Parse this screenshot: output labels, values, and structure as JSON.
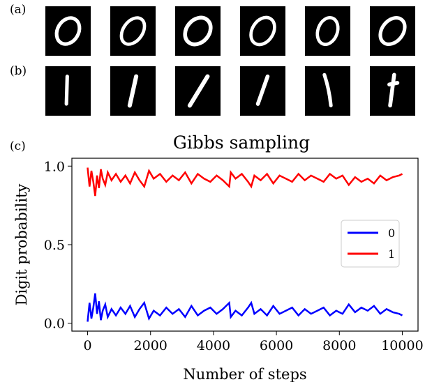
{
  "panel_labels": {
    "a": "(a)",
    "b": "(b)",
    "c": "(c)"
  },
  "digit_images": {
    "row_a_digit": "0",
    "row_b_digit": "1",
    "count_per_row": 6
  },
  "chart_data": {
    "type": "line",
    "title": "Gibbs sampling",
    "xlabel": "Number of steps",
    "ylabel": "Digit probability",
    "xlim": [
      -500,
      10500
    ],
    "ylim": [
      -0.05,
      1.05
    ],
    "xticks": [
      0,
      2000,
      4000,
      6000,
      8000,
      10000
    ],
    "xtick_labels": [
      "0",
      "2000",
      "4000",
      "6000",
      "8000",
      "10000"
    ],
    "yticks": [
      0.0,
      0.5,
      1.0
    ],
    "ytick_labels": [
      "0.0",
      "0.5",
      "1.0"
    ],
    "grid": false,
    "legend_position": "right",
    "series": [
      {
        "name": "0",
        "color": "#0000ff",
        "x": [
          0,
          60,
          120,
          180,
          240,
          300,
          360,
          420,
          480,
          560,
          640,
          760,
          900,
          1050,
          1200,
          1350,
          1500,
          1650,
          1800,
          1950,
          2100,
          2300,
          2500,
          2700,
          2900,
          3100,
          3300,
          3500,
          3700,
          3900,
          4100,
          4300,
          4500,
          4550,
          4700,
          4900,
          5100,
          5200,
          5300,
          5500,
          5700,
          5900,
          6100,
          6300,
          6500,
          6700,
          6900,
          7100,
          7300,
          7500,
          7700,
          7900,
          8100,
          8300,
          8500,
          8700,
          8900,
          9100,
          9300,
          9500,
          9700,
          9900,
          10000
        ],
        "values": [
          0.01,
          0.13,
          0.03,
          0.1,
          0.19,
          0.06,
          0.14,
          0.02,
          0.08,
          0.12,
          0.04,
          0.09,
          0.05,
          0.1,
          0.06,
          0.11,
          0.04,
          0.09,
          0.13,
          0.03,
          0.08,
          0.05,
          0.1,
          0.06,
          0.09,
          0.04,
          0.11,
          0.05,
          0.08,
          0.1,
          0.06,
          0.09,
          0.13,
          0.04,
          0.08,
          0.05,
          0.1,
          0.13,
          0.06,
          0.09,
          0.05,
          0.11,
          0.06,
          0.08,
          0.1,
          0.05,
          0.09,
          0.06,
          0.08,
          0.1,
          0.05,
          0.08,
          0.06,
          0.12,
          0.07,
          0.1,
          0.08,
          0.11,
          0.06,
          0.09,
          0.07,
          0.06,
          0.05
        ]
      },
      {
        "name": "1",
        "color": "#ff0000",
        "x": [
          0,
          60,
          120,
          180,
          240,
          300,
          360,
          420,
          480,
          560,
          640,
          760,
          900,
          1050,
          1200,
          1350,
          1500,
          1650,
          1800,
          1950,
          2100,
          2300,
          2500,
          2700,
          2900,
          3100,
          3300,
          3500,
          3700,
          3900,
          4100,
          4300,
          4500,
          4550,
          4700,
          4900,
          5100,
          5200,
          5300,
          5500,
          5700,
          5900,
          6100,
          6300,
          6500,
          6700,
          6900,
          7100,
          7300,
          7500,
          7700,
          7900,
          8100,
          8300,
          8500,
          8700,
          8900,
          9100,
          9300,
          9500,
          9700,
          9900,
          10000
        ],
        "values": [
          0.99,
          0.87,
          0.97,
          0.9,
          0.81,
          0.94,
          0.86,
          0.98,
          0.92,
          0.88,
          0.96,
          0.91,
          0.95,
          0.9,
          0.94,
          0.89,
          0.96,
          0.91,
          0.87,
          0.97,
          0.92,
          0.95,
          0.9,
          0.94,
          0.91,
          0.96,
          0.89,
          0.95,
          0.92,
          0.9,
          0.94,
          0.91,
          0.87,
          0.96,
          0.92,
          0.95,
          0.9,
          0.87,
          0.94,
          0.91,
          0.95,
          0.89,
          0.94,
          0.92,
          0.9,
          0.95,
          0.91,
          0.94,
          0.92,
          0.9,
          0.95,
          0.92,
          0.94,
          0.88,
          0.93,
          0.9,
          0.92,
          0.89,
          0.94,
          0.91,
          0.93,
          0.94,
          0.95
        ]
      }
    ]
  }
}
